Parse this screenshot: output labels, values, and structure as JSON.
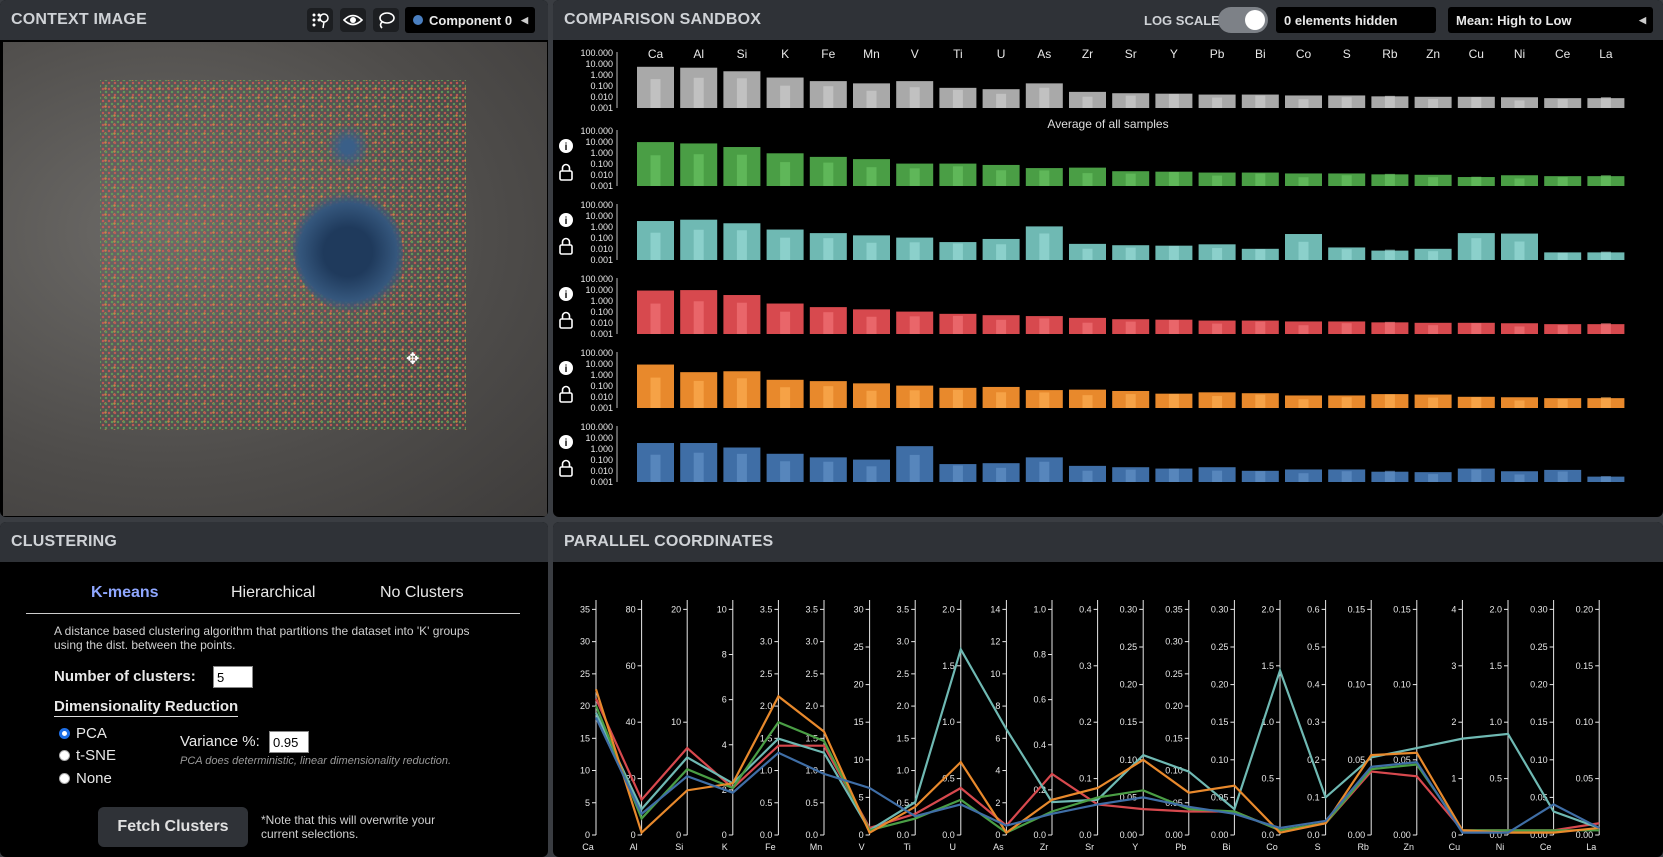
{
  "context": {
    "title": "CONTEXT IMAGE",
    "tools": [
      "dots-tool-icon",
      "eye-icon",
      "lasso-icon"
    ],
    "component_select": "Component 0",
    "component_dot_color": "#4a7fc0"
  },
  "sandbox": {
    "title": "COMPARISON SANDBOX",
    "log_scale_label": "LOG SCALE",
    "log_scale_on": true,
    "hidden_label": "0 elements hidden",
    "sort_select": "Mean: High to Low",
    "elements": [
      "Ca",
      "Al",
      "Si",
      "K",
      "Fe",
      "Mn",
      "V",
      "Ti",
      "U",
      "As",
      "Zr",
      "Sr",
      "Y",
      "Pb",
      "Bi",
      "Co",
      "S",
      "Rb",
      "Zn",
      "Cu",
      "Ni",
      "Ce",
      "La"
    ],
    "yticks": [
      "100.000",
      "10.000",
      "1.000",
      "0.100",
      "0.010",
      "0.001"
    ],
    "average_label": "Average of all samples",
    "rows": [
      {
        "name": "average",
        "color": "#a9a9a9",
        "light": "#d2d2d2"
      },
      {
        "name": "cluster-green",
        "color": "#4a9e45",
        "light": "#6ec867"
      },
      {
        "name": "cluster-teal",
        "color": "#6fb9b3",
        "light": "#9fe0da"
      },
      {
        "name": "cluster-red",
        "color": "#d7494e",
        "light": "#f57a7d"
      },
      {
        "name": "cluster-orange",
        "color": "#e8892c",
        "light": "#ffb258"
      },
      {
        "name": "cluster-blue",
        "color": "#3f6ea6",
        "light": "#6796cc"
      }
    ]
  },
  "clustering": {
    "title": "CLUSTERING",
    "tabs": [
      "K-means",
      "Hierarchical",
      "No Clusters"
    ],
    "active_tab": "K-means",
    "description": "A distance based clustering algorithm that partitions the dataset into 'K' groups using the dist. between the points.",
    "num_clusters_label": "Number of clusters:",
    "num_clusters": "5",
    "dimred_label": "Dimensionality Reduction",
    "dimred_options": [
      "PCA",
      "t-SNE",
      "None"
    ],
    "dimred_selected": "PCA",
    "variance_label": "Variance %:",
    "variance_value": "0.95",
    "pca_note": "PCA does deterministic, linear dimensionality reduction.",
    "fetch_label": "Fetch Clusters",
    "overwrite_note": "*Note that this will overwrite your current selections."
  },
  "parallel": {
    "title": "PARALLEL COORDINATES",
    "axes": [
      {
        "name": "Ca",
        "ticks": [
          "0",
          "5",
          "10",
          "15",
          "20",
          "25",
          "30",
          "35"
        ]
      },
      {
        "name": "Al",
        "ticks": [
          "0",
          "20",
          "40",
          "60",
          "80"
        ]
      },
      {
        "name": "Si",
        "ticks": [
          "0",
          "10",
          "20"
        ]
      },
      {
        "name": "K",
        "ticks": [
          "0",
          "2",
          "4",
          "6",
          "8",
          "10"
        ]
      },
      {
        "name": "Fe",
        "ticks": [
          "0.0",
          "0.5",
          "1.0",
          "1.5",
          "2.0",
          "2.5",
          "3.0",
          "3.5"
        ]
      },
      {
        "name": "Mn",
        "ticks": [
          "0.0",
          "0.5",
          "1.0",
          "1.5",
          "2.0",
          "2.5",
          "3.0",
          "3.5"
        ]
      },
      {
        "name": "V",
        "ticks": [
          "0",
          "5",
          "10",
          "15",
          "20",
          "25",
          "30"
        ]
      },
      {
        "name": "Ti",
        "ticks": [
          "0.0",
          "0.5",
          "1.0",
          "1.5",
          "2.0",
          "2.5",
          "3.0",
          "3.5"
        ]
      },
      {
        "name": "U",
        "ticks": [
          "0.0",
          "0.5",
          "1.0",
          "1.5",
          "2.0"
        ]
      },
      {
        "name": "As",
        "ticks": [
          "0",
          "2",
          "4",
          "6",
          "8",
          "10",
          "12",
          "14"
        ]
      },
      {
        "name": "Zr",
        "ticks": [
          "0.0",
          "0.2",
          "0.4",
          "0.6",
          "0.8",
          "1.0"
        ]
      },
      {
        "name": "Sr",
        "ticks": [
          "0.0",
          "0.1",
          "0.2",
          "0.3",
          "0.4"
        ]
      },
      {
        "name": "Y",
        "ticks": [
          "0.00",
          "0.05",
          "0.10",
          "0.15",
          "0.20",
          "0.25",
          "0.30"
        ]
      },
      {
        "name": "Pb",
        "ticks": [
          "0.00",
          "0.05",
          "0.10",
          "0.15",
          "0.20",
          "0.25",
          "0.30",
          "0.35"
        ]
      },
      {
        "name": "Bi",
        "ticks": [
          "0.00",
          "0.05",
          "0.10",
          "0.15",
          "0.20",
          "0.25",
          "0.30"
        ]
      },
      {
        "name": "Co",
        "ticks": [
          "0.0",
          "0.5",
          "1.0",
          "1.5",
          "2.0"
        ]
      },
      {
        "name": "S",
        "ticks": [
          "0.0",
          "0.1",
          "0.2",
          "0.3",
          "0.4",
          "0.5",
          "0.6"
        ]
      },
      {
        "name": "Rb",
        "ticks": [
          "0.00",
          "0.05",
          "0.10",
          "0.15"
        ]
      },
      {
        "name": "Zn",
        "ticks": [
          "0.00",
          "0.05",
          "0.10",
          "0.15"
        ]
      },
      {
        "name": "Cu",
        "ticks": [
          "0",
          "1",
          "2",
          "3",
          "4"
        ]
      },
      {
        "name": "Ni",
        "ticks": [
          "0.0",
          "0.5",
          "1.0",
          "1.5",
          "2.0"
        ]
      },
      {
        "name": "Ce",
        "ticks": [
          "0.00",
          "0.05",
          "0.10",
          "0.15",
          "0.20",
          "0.25",
          "0.30"
        ]
      },
      {
        "name": "La",
        "ticks": [
          "0.00",
          "0.05",
          "0.10",
          "0.15",
          "0.20"
        ]
      }
    ],
    "lines": [
      {
        "color": "#d7494e",
        "frac": [
          0.58,
          0.15,
          0.37,
          0.2,
          0.38,
          0.38,
          0.03,
          0.09,
          0.2,
          0.04,
          0.26,
          0.13,
          0.11,
          0.1,
          0.1,
          0.02,
          0.05,
          0.27,
          0.25,
          0.02,
          0.02,
          0.02,
          0.05
        ]
      },
      {
        "color": "#6fb9b3",
        "frac": [
          0.52,
          0.11,
          0.33,
          0.22,
          0.41,
          0.35,
          0.02,
          0.14,
          0.79,
          0.45,
          0.14,
          0.15,
          0.34,
          0.27,
          0.11,
          0.7,
          0.16,
          0.33,
          0.37,
          0.41,
          0.43,
          0.1,
          0.03
        ]
      },
      {
        "color": "#4a9e45",
        "frac": [
          0.55,
          0.07,
          0.28,
          0.2,
          0.48,
          0.4,
          0.02,
          0.07,
          0.15,
          0.01,
          0.1,
          0.16,
          0.19,
          0.11,
          0.1,
          0.02,
          0.05,
          0.28,
          0.3,
          0.02,
          0.02,
          0.02,
          0.02
        ]
      },
      {
        "color": "#e8892c",
        "frac": [
          0.62,
          0.01,
          0.19,
          0.22,
          0.59,
          0.44,
          0.01,
          0.12,
          0.31,
          0.01,
          0.15,
          0.2,
          0.32,
          0.18,
          0.21,
          0.01,
          0.05,
          0.34,
          0.35,
          0.02,
          0.01,
          0.01,
          0.03
        ]
      },
      {
        "color": "#3f6ea6",
        "frac": [
          0.5,
          0.09,
          0.25,
          0.18,
          0.35,
          0.26,
          0.2,
          0.08,
          0.13,
          0.04,
          0.09,
          0.13,
          0.16,
          0.12,
          0.09,
          0.03,
          0.06,
          0.29,
          0.31,
          0.01,
          0.01,
          0.13,
          0.03
        ]
      }
    ]
  }
}
